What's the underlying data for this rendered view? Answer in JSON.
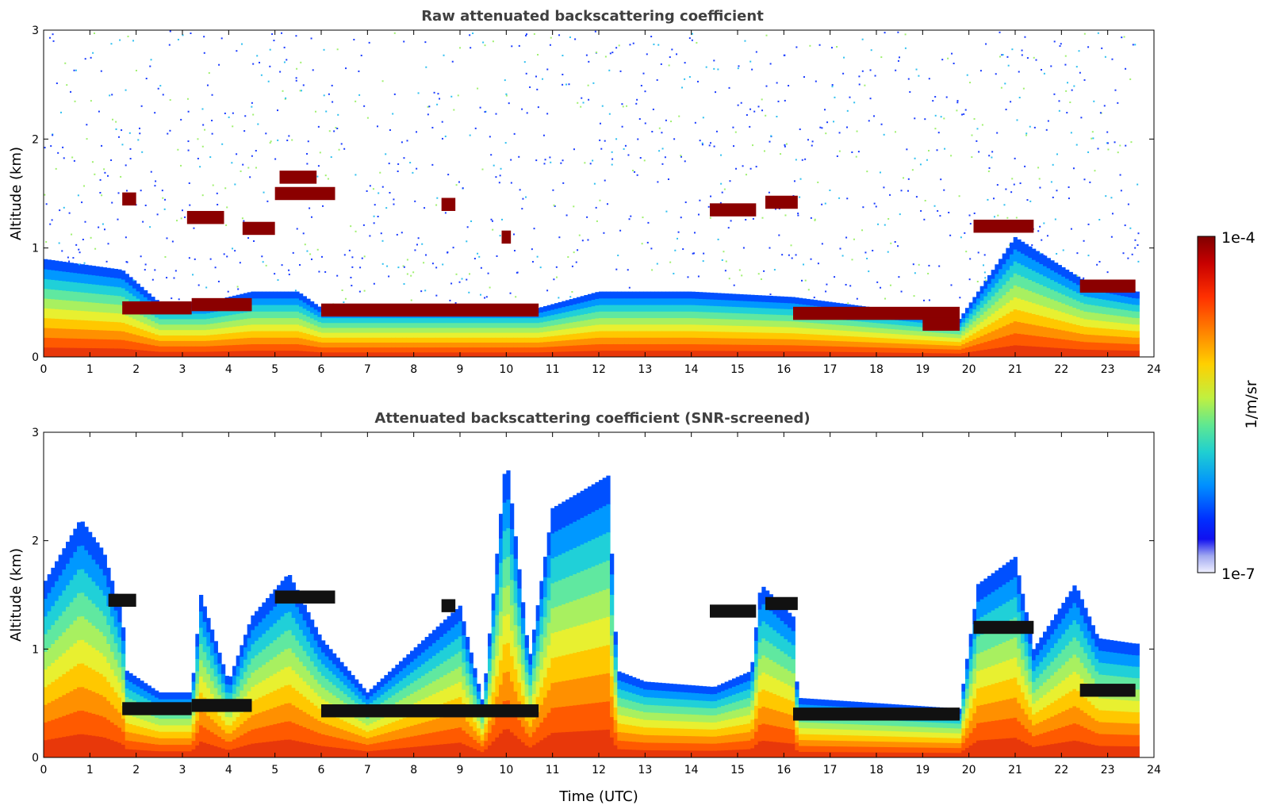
{
  "chart_data": [
    {
      "type": "heatmap",
      "title": "Raw attenuated backscattering coefficient",
      "xlabel": "",
      "ylabel": "Altitude (km)",
      "xlim": [
        0,
        24
      ],
      "ylim": [
        0,
        3
      ],
      "x_ticks": [
        "0",
        "1",
        "2",
        "3",
        "4",
        "5",
        "6",
        "7",
        "8",
        "9",
        "10",
        "11",
        "12",
        "13",
        "14",
        "15",
        "16",
        "17",
        "18",
        "19",
        "20",
        "21",
        "22",
        "23",
        "24"
      ],
      "y_ticks": [
        "0",
        "1",
        "2",
        "3"
      ],
      "data_end_hour": 23.6,
      "boundary_layer_top_km": [
        {
          "x": 0,
          "y": 0.9
        },
        {
          "x": 1.7,
          "y": 0.8
        },
        {
          "x": 2.5,
          "y": 0.5
        },
        {
          "x": 3.5,
          "y": 0.5
        },
        {
          "x": 4.5,
          "y": 0.6
        },
        {
          "x": 5.5,
          "y": 0.6
        },
        {
          "x": 6,
          "y": 0.45
        },
        {
          "x": 8,
          "y": 0.45
        },
        {
          "x": 10.7,
          "y": 0.45
        },
        {
          "x": 12,
          "y": 0.6
        },
        {
          "x": 14,
          "y": 0.6
        },
        {
          "x": 16.2,
          "y": 0.55
        },
        {
          "x": 19.8,
          "y": 0.35
        },
        {
          "x": 21,
          "y": 1.1
        },
        {
          "x": 22.5,
          "y": 0.7
        },
        {
          "x": 23.6,
          "y": 0.6
        }
      ],
      "cloud_layers_km": [
        {
          "x0": 1.7,
          "x1": 3.2,
          "y": 0.45
        },
        {
          "x0": 3.2,
          "x1": 4.5,
          "y": 0.48
        },
        {
          "x0": 6,
          "x1": 10.7,
          "y": 0.43
        },
        {
          "x0": 16.2,
          "x1": 19.8,
          "y": 0.4
        },
        {
          "x0": 19,
          "x1": 19.8,
          "y": 0.3
        },
        {
          "x0": 22.4,
          "x1": 23.6,
          "y": 0.65
        },
        {
          "x0": 1.7,
          "x1": 2.0,
          "y": 1.45
        },
        {
          "x0": 3.1,
          "x1": 3.9,
          "y": 1.28
        },
        {
          "x0": 4.3,
          "x1": 5.0,
          "y": 1.18
        },
        {
          "x0": 5.0,
          "x1": 6.3,
          "y": 1.5
        },
        {
          "x0": 5.1,
          "x1": 5.9,
          "y": 1.65
        },
        {
          "x0": 8.6,
          "x1": 8.9,
          "y": 1.4
        },
        {
          "x0": 9.9,
          "x1": 10.1,
          "y": 1.1
        },
        {
          "x0": 14.4,
          "x1": 15.4,
          "y": 1.35
        },
        {
          "x0": 15.6,
          "x1": 16.3,
          "y": 1.42
        },
        {
          "x0": 20.1,
          "x1": 21.4,
          "y": 1.2
        }
      ]
    },
    {
      "type": "heatmap",
      "title": "Attenuated backscattering coefficient (SNR-screened)",
      "xlabel": "Time (UTC)",
      "ylabel": "Altitude (km)",
      "xlim": [
        0,
        24
      ],
      "ylim": [
        0,
        3
      ],
      "x_ticks": [
        "0",
        "1",
        "2",
        "3",
        "4",
        "5",
        "6",
        "7",
        "8",
        "9",
        "10",
        "11",
        "12",
        "13",
        "14",
        "15",
        "16",
        "17",
        "18",
        "19",
        "20",
        "21",
        "22",
        "23",
        "24"
      ],
      "y_ticks": [
        "0",
        "1",
        "2",
        "3"
      ],
      "data_end_hour": 23.6,
      "signal_top_km": [
        {
          "x": 0,
          "y": 1.6
        },
        {
          "x": 0.8,
          "y": 2.2
        },
        {
          "x": 1.3,
          "y": 1.9
        },
        {
          "x": 1.7,
          "y": 1.3
        },
        {
          "x": 1.8,
          "y": 0.8
        },
        {
          "x": 2.5,
          "y": 0.6
        },
        {
          "x": 3.2,
          "y": 0.6
        },
        {
          "x": 3.4,
          "y": 1.5
        },
        {
          "x": 4,
          "y": 0.7
        },
        {
          "x": 4.5,
          "y": 1.3
        },
        {
          "x": 5.3,
          "y": 1.7
        },
        {
          "x": 6,
          "y": 1.1
        },
        {
          "x": 7,
          "y": 0.6
        },
        {
          "x": 9,
          "y": 1.4
        },
        {
          "x": 9.5,
          "y": 0.5
        },
        {
          "x": 10,
          "y": 2.8
        },
        {
          "x": 10.5,
          "y": 0.9
        },
        {
          "x": 11,
          "y": 2.3
        },
        {
          "x": 12.2,
          "y": 2.6
        },
        {
          "x": 12.4,
          "y": 0.8
        },
        {
          "x": 13,
          "y": 0.7
        },
        {
          "x": 14.5,
          "y": 0.65
        },
        {
          "x": 15.3,
          "y": 0.8
        },
        {
          "x": 15.5,
          "y": 1.6
        },
        {
          "x": 16.2,
          "y": 1.3
        },
        {
          "x": 16.3,
          "y": 0.55
        },
        {
          "x": 19.8,
          "y": 0.45
        },
        {
          "x": 20.2,
          "y": 1.6
        },
        {
          "x": 21,
          "y": 1.85
        },
        {
          "x": 21.4,
          "y": 1.0
        },
        {
          "x": 22.3,
          "y": 1.6
        },
        {
          "x": 22.8,
          "y": 1.1
        },
        {
          "x": 23.6,
          "y": 1.05
        }
      ],
      "cloud_layers_km": [
        {
          "x0": 1.7,
          "x1": 3.2,
          "y": 0.45
        },
        {
          "x0": 3.2,
          "x1": 4.5,
          "y": 0.48
        },
        {
          "x0": 6,
          "x1": 10.7,
          "y": 0.43
        },
        {
          "x0": 16.2,
          "x1": 19.8,
          "y": 0.4
        },
        {
          "x0": 22.4,
          "x1": 23.6,
          "y": 0.62
        },
        {
          "x0": 1.4,
          "x1": 2.0,
          "y": 1.45
        },
        {
          "x0": 5.0,
          "x1": 6.3,
          "y": 1.48
        },
        {
          "x0": 8.6,
          "x1": 8.9,
          "y": 1.4
        },
        {
          "x0": 14.4,
          "x1": 15.4,
          "y": 1.35
        },
        {
          "x0": 15.6,
          "x1": 16.3,
          "y": 1.42
        },
        {
          "x0": 20.1,
          "x1": 21.4,
          "y": 1.2
        }
      ]
    }
  ],
  "colorbar": {
    "max_label": "1e-4",
    "min_label": "1e-7",
    "unit_label": "1/m/sr",
    "colors": [
      "#7f0000",
      "#c80000",
      "#ff2000",
      "#ff7000",
      "#ffc000",
      "#e0f020",
      "#90f060",
      "#40e0a0",
      "#00c0e0",
      "#0080ff",
      "#0020ff",
      "#c0c8f8",
      "#f0f0ff"
    ]
  }
}
